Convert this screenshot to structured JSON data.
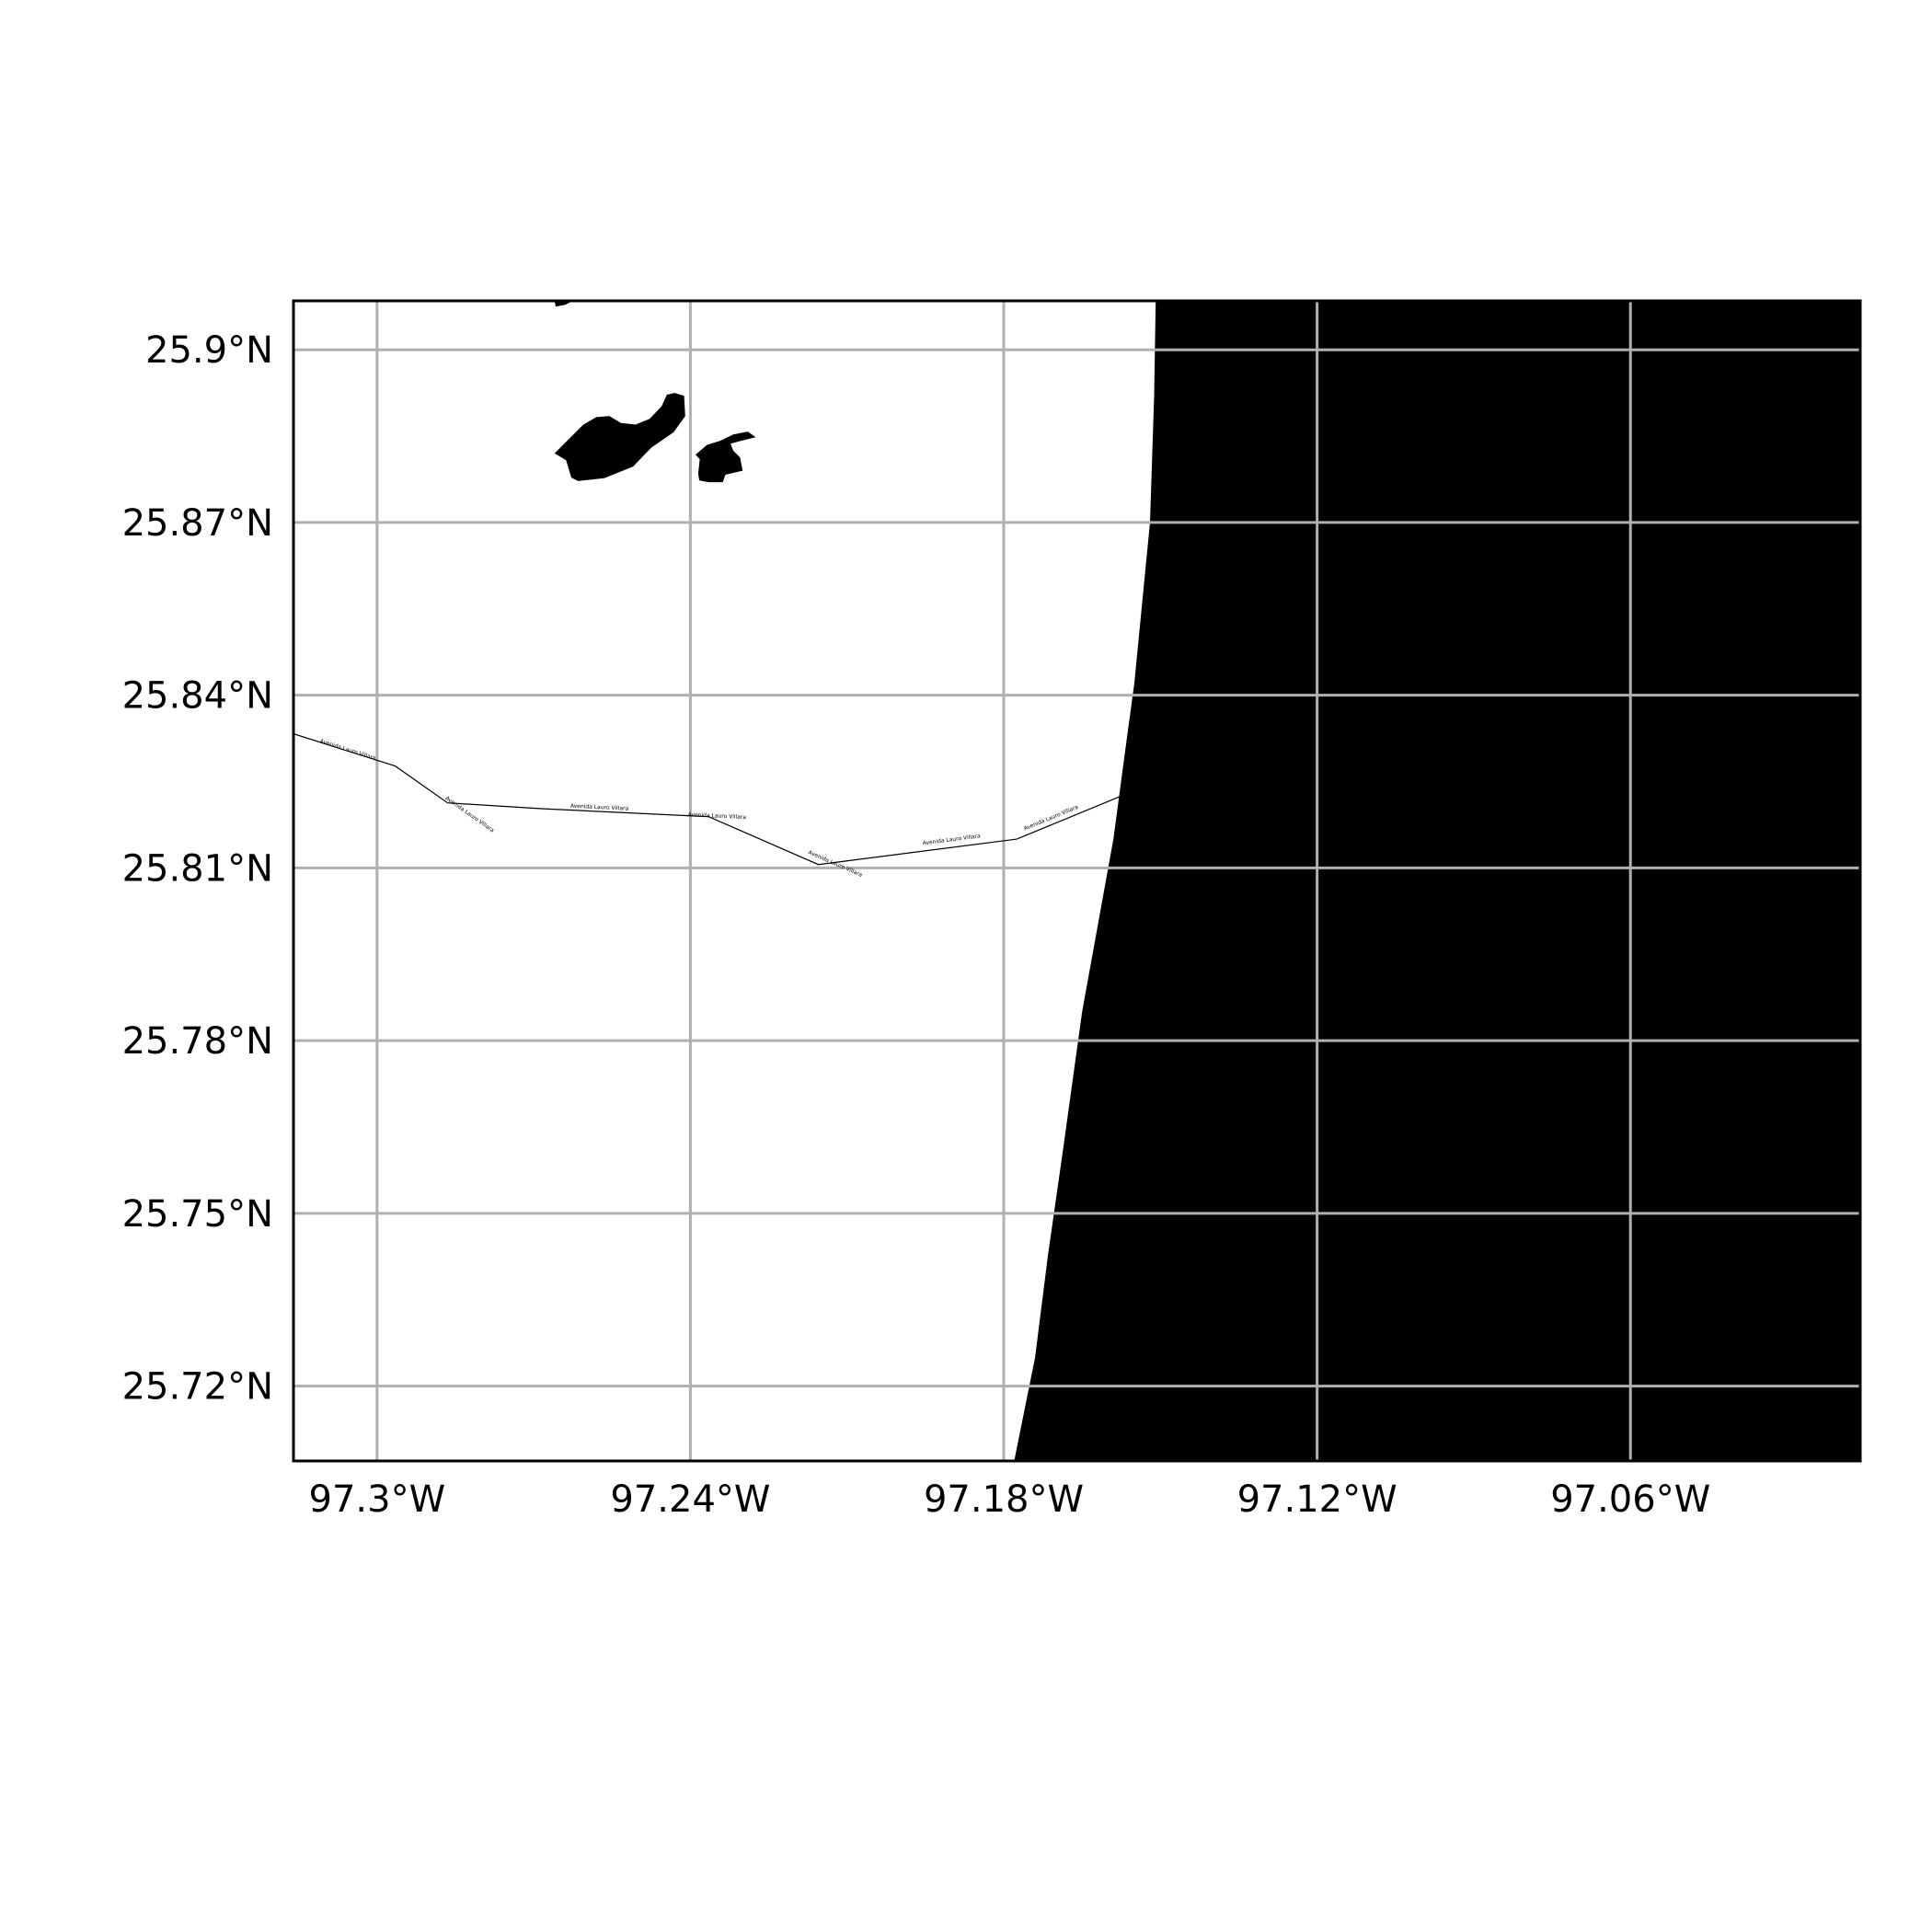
{
  "map": {
    "extent": {
      "lon_min": -97.316,
      "lon_max": -97.016,
      "lat_min": 25.707,
      "lat_max": 25.9085
    },
    "gridlines": true,
    "x_ticks": [
      {
        "value": -97.3,
        "label": "97.3°W"
      },
      {
        "value": -97.24,
        "label": "97.24°W"
      },
      {
        "value": -97.18,
        "label": "97.18°W"
      },
      {
        "value": -97.12,
        "label": "97.12°W"
      },
      {
        "value": -97.06,
        "label": "97.06°W"
      }
    ],
    "y_ticks": [
      {
        "value": 25.9,
        "label": "25.9°N"
      },
      {
        "value": 25.87,
        "label": "25.87°N"
      },
      {
        "value": 25.84,
        "label": "25.84°N"
      },
      {
        "value": 25.81,
        "label": "25.81°N"
      },
      {
        "value": 25.78,
        "label": "25.78°N"
      },
      {
        "value": 25.75,
        "label": "25.75°N"
      },
      {
        "value": 25.72,
        "label": "25.72°N"
      }
    ],
    "colors": {
      "land": "#ffffff",
      "water": "#000000",
      "grid": "#b0b0b0",
      "frame": "#000000",
      "road": "#000000"
    },
    "road": {
      "name": "Avenida Lauro Villara",
      "points": [
        [
          -97.316,
          25.8333
        ],
        [
          -97.2965,
          25.8277
        ],
        [
          -97.2865,
          25.8213
        ],
        [
          -97.2685,
          25.8203
        ],
        [
          -97.2365,
          25.8189
        ],
        [
          -97.2155,
          25.8106
        ],
        [
          -97.1775,
          25.815
        ],
        [
          -97.1575,
          25.8225
        ]
      ],
      "label_positions": [
        [
          -97.311,
          25.8318
        ],
        [
          -97.287,
          25.822
        ],
        [
          -97.263,
          25.8205
        ],
        [
          -97.2405,
          25.819
        ],
        [
          -97.2175,
          25.8125
        ],
        [
          -97.1955,
          25.814
        ],
        [
          -97.176,
          25.8165
        ]
      ]
    },
    "coastline": [
      [
        -97.1509,
        25.9085
      ],
      [
        -97.1512,
        25.892
      ],
      [
        -97.152,
        25.87
      ],
      [
        -97.155,
        25.842
      ],
      [
        -97.1565,
        25.832
      ],
      [
        -97.159,
        25.815
      ],
      [
        -97.165,
        25.785
      ],
      [
        -97.1685,
        25.762
      ],
      [
        -97.1715,
        25.743
      ],
      [
        -97.174,
        25.725
      ],
      [
        -97.178,
        25.707
      ]
    ],
    "lakes": [
      [
        [
          -97.266,
          25.882
        ],
        [
          -97.2605,
          25.887
        ],
        [
          -97.258,
          25.8883
        ],
        [
          -97.2555,
          25.8885
        ],
        [
          -97.2533,
          25.8873
        ],
        [
          -97.2505,
          25.887
        ],
        [
          -97.2478,
          25.888
        ],
        [
          -97.2455,
          25.8902
        ],
        [
          -97.2445,
          25.8922
        ],
        [
          -97.243,
          25.8925
        ],
        [
          -97.2412,
          25.892
        ],
        [
          -97.241,
          25.8885
        ],
        [
          -97.2432,
          25.8857
        ],
        [
          -97.2475,
          25.883
        ],
        [
          -97.251,
          25.8797
        ],
        [
          -97.2565,
          25.8777
        ],
        [
          -97.2615,
          25.8772
        ],
        [
          -97.2628,
          25.8778
        ],
        [
          -97.2638,
          25.8808
        ]
      ],
      [
        [
          -97.239,
          25.8818
        ],
        [
          -97.2368,
          25.8835
        ],
        [
          -97.2343,
          25.8842
        ],
        [
          -97.2318,
          25.8853
        ],
        [
          -97.229,
          25.8858
        ],
        [
          -97.2275,
          25.8848
        ],
        [
          -97.2303,
          25.8842
        ],
        [
          -97.2323,
          25.8837
        ],
        [
          -97.2318,
          25.8825
        ],
        [
          -97.2305,
          25.8813
        ],
        [
          -97.23,
          25.879
        ],
        [
          -97.2333,
          25.8783
        ],
        [
          -97.2338,
          25.877
        ],
        [
          -97.236,
          25.877
        ],
        [
          -97.2365,
          25.877
        ],
        [
          -97.2383,
          25.8773
        ],
        [
          -97.2385,
          25.8785
        ],
        [
          -97.2382,
          25.881
        ]
      ],
      [
        [
          -97.266,
          25.9085
        ],
        [
          -97.2658,
          25.9075
        ],
        [
          -97.264,
          25.9078
        ],
        [
          -97.2625,
          25.9085
        ]
      ]
    ]
  }
}
